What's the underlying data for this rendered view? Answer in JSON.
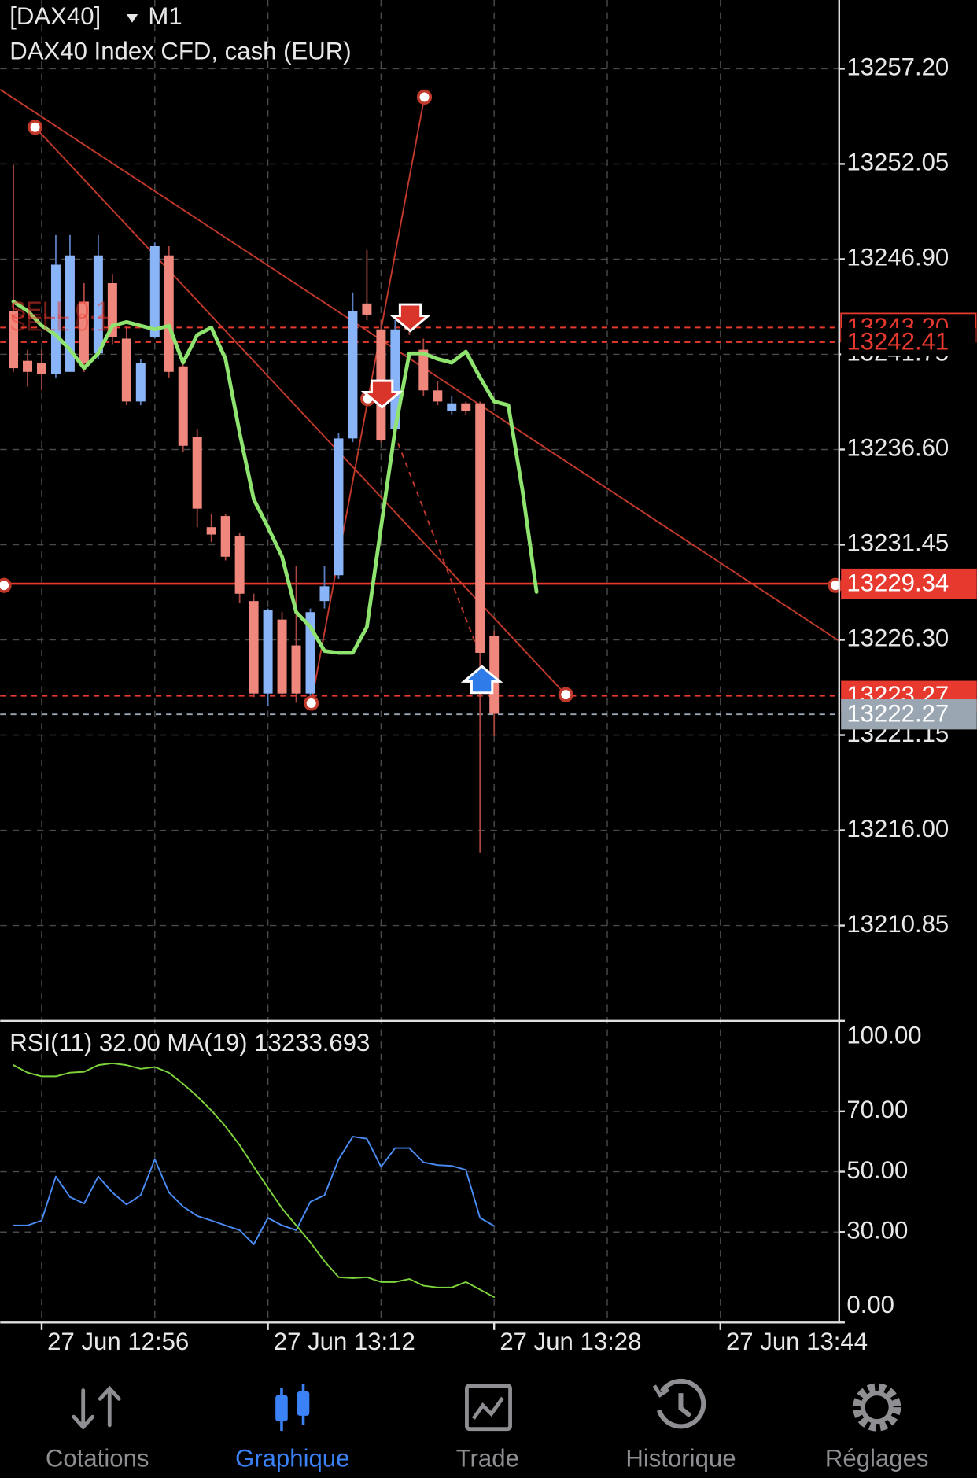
{
  "header": {
    "symbol": "[DAX40]",
    "timeframe": "M1",
    "description": "DAX40 Index CFD, cash (EUR)"
  },
  "chart_data": [
    {
      "type": "candlestick",
      "order_label": "SELL 0.1",
      "categories": [
        null,
        null,
        "27 Jun 12:56",
        null,
        null,
        null,
        null,
        null,
        null,
        null,
        null,
        null,
        null,
        null,
        null,
        null,
        null,
        null,
        "27 Jun 13:12",
        null,
        null,
        null,
        null,
        null,
        null,
        null,
        null,
        null,
        null,
        null,
        null,
        null,
        null,
        null,
        "27 Jun 13:28",
        null,
        null,
        null,
        null,
        null,
        null,
        null,
        null,
        null,
        null,
        null,
        null,
        null,
        null,
        null,
        "27 Jun 13:44",
        null,
        null,
        null,
        null,
        null,
        null,
        null
      ],
      "open": [
        13244.1,
        13241.4,
        13241.3,
        13240.7,
        13240.8,
        13244.6,
        13241.8,
        13245.6,
        13242.6,
        13239.2,
        13242.7,
        13247.1,
        13241.1,
        13237.3,
        13232.4,
        13233.0,
        13231.9,
        13228.4,
        13223.4,
        13227.4,
        13226.0,
        13223.4,
        13228.4,
        13229.8,
        13237.2,
        13244.5,
        13243.1,
        13237.7,
        13243.6,
        13242.0,
        13239.8,
        13238.7,
        13239.1,
        13239.1,
        13226.5,
        null,
        null,
        null,
        null,
        null,
        null,
        null,
        null,
        null,
        null,
        null,
        null,
        null,
        null,
        null,
        null,
        null,
        null,
        null,
        null,
        null,
        null,
        null
      ],
      "high": [
        13252.0,
        13242.0,
        13242.0,
        13248.2,
        13248.2,
        13245.6,
        13248.2,
        13246.1,
        13243.3,
        13241.5,
        13247.8,
        13247.6,
        13241.5,
        13237.7,
        13233.1,
        13233.1,
        13232.1,
        13228.8,
        13228.0,
        13227.8,
        13230.3,
        13228.0,
        13230.3,
        13237.5,
        13245.1,
        13247.4,
        13243.6,
        13243.6,
        13244.1,
        13242.6,
        13240.3,
        13239.5,
        13239.2,
        13239.2,
        13226.8,
        null,
        null,
        null,
        null,
        null,
        null,
        null,
        null,
        null,
        null,
        null,
        null,
        null,
        null,
        null,
        null,
        null,
        null,
        null,
        null,
        null,
        null,
        null
      ],
      "low": [
        13240.8,
        13240.0,
        13239.8,
        13240.5,
        13240.8,
        13240.8,
        13241.5,
        13242.3,
        13239.0,
        13239.0,
        13242.6,
        13240.5,
        13236.5,
        13232.4,
        13231.6,
        13230.6,
        13228.3,
        13223.2,
        13222.7,
        13223.2,
        13222.9,
        13222.9,
        13228.0,
        13229.6,
        13237.0,
        13243.6,
        13237.0,
        13237.5,
        13242.8,
        13239.5,
        13239.0,
        13238.5,
        13238.5,
        13214.8,
        13221.1,
        null,
        null,
        null,
        null,
        null,
        null,
        null,
        null,
        null,
        null,
        null,
        null,
        null,
        null,
        null,
        null,
        null,
        null,
        null,
        null,
        null,
        null,
        null
      ],
      "close": [
        13241.0,
        13240.8,
        13240.7,
        13246.6,
        13247.1,
        13241.3,
        13247.1,
        13242.7,
        13239.2,
        13241.3,
        13247.6,
        13240.8,
        13236.8,
        13233.4,
        13232.0,
        13230.8,
        13228.8,
        13223.4,
        13227.9,
        13223.4,
        13223.4,
        13227.8,
        13229.2,
        13237.2,
        13244.1,
        13243.9,
        13237.1,
        13243.1,
        13243.1,
        13239.8,
        13239.2,
        13239.1,
        13238.7,
        13225.6,
        13222.3,
        null,
        null,
        null,
        null,
        null,
        null,
        null,
        null,
        null,
        null,
        null,
        null,
        null,
        null,
        null,
        null,
        null,
        null,
        null,
        null,
        null,
        null,
        null
      ],
      "up_color": "#8ab4f8",
      "down_color": "#f0877d",
      "ma": {
        "color": "#8fe36f",
        "values": [
          13244.6,
          13244.1,
          13243.3,
          13242.8,
          13242.0,
          13241.0,
          13241.8,
          13243.3,
          13243.5,
          13243.3,
          13243.1,
          13243.3,
          13241.3,
          13242.8,
          13243.2,
          13241.5,
          13237.5,
          13233.9,
          13232.4,
          13230.8,
          13227.8,
          13227.0,
          13225.7,
          13225.6,
          13225.6,
          13227.0,
          13232.4,
          13237.7,
          13241.8,
          13241.8,
          13241.5,
          13241.3,
          13241.9,
          13240.5,
          13239.2,
          13239.0,
          13234.4,
          13228.9,
          null,
          null,
          null,
          null,
          null,
          null,
          null,
          null,
          null,
          null,
          null,
          null,
          null,
          null,
          null,
          null,
          null,
          null,
          null,
          null
        ]
      },
      "ylim": [
        13205.69,
        13260.92
      ],
      "yticks": [
        {
          "value": 13257.2,
          "label": "13257.20"
        },
        13252.05,
        {
          "value": 13246.9,
          "label": "13246.90"
        },
        13241.75,
        {
          "value": 13236.6,
          "label": "13236.60"
        },
        13231.45,
        {
          "value": 13226.3,
          "label": "13226.30"
        },
        13221.15,
        {
          "value": 13216,
          "label": "13216.00"
        },
        13210.85
      ],
      "grid": true,
      "price_lines": [
        {
          "value": 13243.2,
          "label": "13243.20",
          "color": "#e8392f",
          "style": "outline",
          "dashed": true
        },
        {
          "value": 13242.41,
          "color": "#e8392f",
          "style": "text",
          "dashed": true
        },
        {
          "value": 13229.34,
          "color": "#e8392f",
          "style": "box",
          "dashed": false
        },
        {
          "value": 13223.27,
          "color": "#e8392f",
          "style": "box",
          "dashed": true
        },
        {
          "value": 13222.27,
          "color": "#9aa6b2",
          "style": "box",
          "dashed": true
        }
      ]
    },
    {
      "type": "line",
      "title": "RSI(11) 32.00 MA(19) 13233.693",
      "ylim": [
        0,
        100
      ],
      "yticks": [
        {
          "value": 100,
          "label": "100.00"
        },
        {
          "value": 70,
          "label": "70.00"
        },
        {
          "value": 50,
          "label": "50.00"
        },
        {
          "value": 30,
          "label": "30.00"
        },
        {
          "value": 0,
          "label": "0.00"
        }
      ],
      "grid": true,
      "series": [
        {
          "color": "#4a8cf5",
          "values": [
            32.2,
            32.2,
            33.8,
            48.4,
            41.6,
            39.4,
            48.4,
            43.1,
            39.1,
            42.2,
            54.1,
            43.1,
            38.4,
            35.3,
            33.8,
            32.2,
            30.6,
            25.9,
            34.7,
            32.2,
            30.6,
            40.0,
            42.2,
            54.1,
            61.6,
            60.9,
            51.6,
            57.8,
            57.8,
            53.1,
            52.2,
            51.9,
            50.6,
            34.7,
            32.0,
            null,
            null,
            null,
            null,
            null,
            null,
            null,
            null,
            null,
            null,
            null,
            null,
            null,
            null,
            null,
            null,
            null,
            null,
            null,
            null,
            null,
            null,
            null
          ]
        },
        {
          "color": "#7ed43c",
          "values": [
            85.3,
            82.8,
            81.6,
            81.6,
            82.8,
            83.1,
            85.3,
            85.9,
            85.3,
            84.1,
            84.7,
            82.8,
            79.1,
            75.0,
            70.3,
            65.0,
            58.8,
            51.6,
            44.7,
            37.8,
            32.2,
            26.6,
            20.3,
            15.0,
            14.7,
            15.0,
            13.4,
            13.4,
            14.4,
            12.2,
            11.6,
            11.6,
            13.4,
            10.9,
            8.4,
            null,
            null,
            null,
            null,
            null,
            null,
            null,
            null,
            null,
            null,
            null,
            null,
            null,
            null,
            null,
            null,
            null,
            null,
            null,
            null,
            null,
            null,
            null
          ]
        }
      ]
    }
  ],
  "tabs": [
    {
      "label": "Cotations"
    },
    {
      "label": "Graphique",
      "active": true
    },
    {
      "label": "Trade"
    },
    {
      "label": "Historique"
    },
    {
      "label": "Réglages"
    }
  ]
}
